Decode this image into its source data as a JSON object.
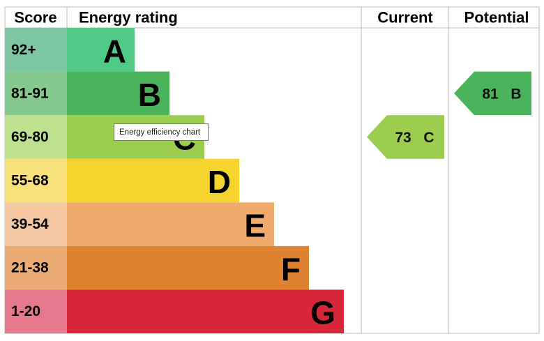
{
  "header": {
    "score": "Score",
    "rating": "Energy rating",
    "current": "Current",
    "potential": "Potential"
  },
  "bands": [
    {
      "range": "92+",
      "letter": "A",
      "color": "#50c984",
      "light": "#7cc6a2"
    },
    {
      "range": "81-91",
      "letter": "B",
      "color": "#4bb35a",
      "light": "#85c98e"
    },
    {
      "range": "69-80",
      "letter": "C",
      "color": "#9bcd4e",
      "light": "#bde18f"
    },
    {
      "range": "55-68",
      "letter": "D",
      "color": "#f5d42f",
      "light": "#f9e17a"
    },
    {
      "range": "39-54",
      "letter": "E",
      "color": "#efab6b",
      "light": "#f4c9a1"
    },
    {
      "range": "21-38",
      "letter": "F",
      "color": "#e08330",
      "light": "#ebab74"
    },
    {
      "range": "1-20",
      "letter": "G",
      "color": "#d7283a",
      "light": "#e5788b"
    }
  ],
  "current": {
    "value": 73,
    "letter": "C",
    "band": 2
  },
  "potential": {
    "value": 81,
    "letter": "B",
    "band": 1
  },
  "tooltip": "Energy efficiency chart"
}
